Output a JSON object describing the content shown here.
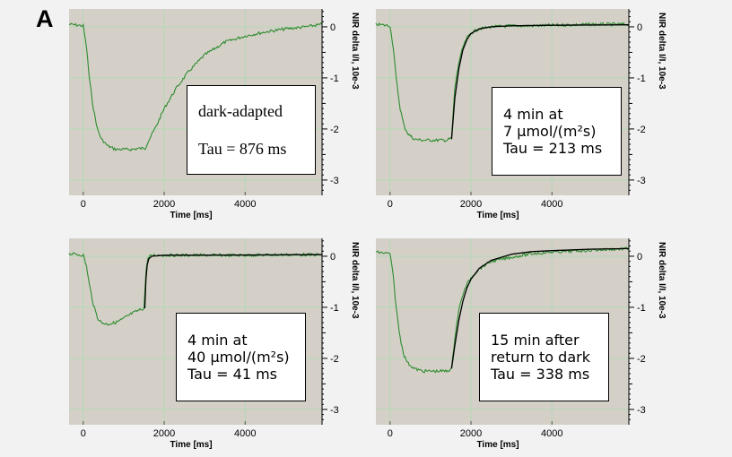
{
  "figure_label": "A",
  "colors": {
    "plot_bg": "#d4d0c8",
    "grid": "#b4d8b4",
    "signal": "#2e8b2e",
    "fit": "#000000"
  },
  "chart_data": [
    {
      "type": "line",
      "title": "",
      "xlabel": "Time [ms]",
      "ylabel": "NIR delta I/I, 10e-3",
      "xlim": [
        -350,
        5900
      ],
      "ylim": [
        -3.3,
        0.35
      ],
      "xticks": [
        0,
        2000,
        4000
      ],
      "yticks": [
        0,
        -1,
        -2,
        -3
      ],
      "grid": true,
      "annotation_lines": [
        "dark-adapted",
        "Tau = 876 ms"
      ],
      "series": [
        {
          "role": "signal",
          "x": [
            -350,
            0,
            80,
            150,
            250,
            350,
            450,
            600,
            800,
            1000,
            1200,
            1400,
            1530,
            1600,
            1800,
            2000,
            2300,
            2600,
            3000,
            3500,
            4000,
            4500,
            5000,
            5500,
            5900
          ],
          "y": [
            0.05,
            0.02,
            -0.4,
            -1.0,
            -1.6,
            -2.0,
            -2.2,
            -2.33,
            -2.4,
            -2.4,
            -2.4,
            -2.38,
            -2.38,
            -2.25,
            -1.95,
            -1.6,
            -1.2,
            -0.88,
            -0.55,
            -0.3,
            -0.18,
            -0.1,
            -0.04,
            0.0,
            0.05
          ]
        }
      ]
    },
    {
      "type": "line",
      "title": "",
      "xlabel": "Time [ms]",
      "ylabel": "NIR delta I/I, 10e-3",
      "xlim": [
        -350,
        5900
      ],
      "ylim": [
        -3.3,
        0.35
      ],
      "xticks": [
        0,
        2000,
        4000
      ],
      "yticks": [
        0,
        -1,
        -2,
        -3
      ],
      "grid": true,
      "annotation_lines": [
        "4 min at",
        "7 µmol/(m²s)",
        "Tau = 213 ms"
      ],
      "series": [
        {
          "role": "signal",
          "x": [
            -350,
            0,
            80,
            150,
            250,
            350,
            450,
            600,
            800,
            1000,
            1200,
            1400,
            1520,
            1600,
            1700,
            1800,
            1900,
            2000,
            2200,
            2500,
            3000,
            3500,
            4000,
            5000,
            5900
          ],
          "y": [
            0.05,
            0.02,
            -0.4,
            -1.0,
            -1.6,
            -1.95,
            -2.1,
            -2.2,
            -2.22,
            -2.22,
            -2.22,
            -2.22,
            -2.18,
            -1.2,
            -0.7,
            -0.4,
            -0.22,
            -0.12,
            -0.04,
            0.0,
            0.02,
            0.02,
            0.03,
            0.05,
            0.05
          ]
        },
        {
          "role": "fit",
          "x": [
            1520,
            1600,
            1700,
            1800,
            1900,
            2000,
            2200,
            2500,
            3000,
            4000,
            5900
          ],
          "y": [
            -2.2,
            -1.4,
            -0.82,
            -0.45,
            -0.25,
            -0.13,
            -0.04,
            0.0,
            0.02,
            0.03,
            0.04
          ]
        }
      ]
    },
    {
      "type": "line",
      "title": "",
      "xlabel": "Time [ms]",
      "ylabel": "NIR delta I/I, 10e-3",
      "xlim": [
        -350,
        5900
      ],
      "ylim": [
        -3.3,
        0.35
      ],
      "xticks": [
        0,
        2000,
        4000
      ],
      "yticks": [
        0,
        -1,
        -2,
        -3
      ],
      "grid": true,
      "annotation_lines": [
        "4 min at",
        "40 µmol/(m²s)",
        "Tau = 41 ms"
      ],
      "series": [
        {
          "role": "signal",
          "x": [
            -350,
            0,
            80,
            150,
            250,
            350,
            450,
            600,
            800,
            1000,
            1200,
            1400,
            1500,
            1530,
            1560,
            1600,
            1650,
            1750,
            2000,
            3000,
            4000,
            5000,
            5900
          ],
          "y": [
            0.05,
            0.02,
            -0.2,
            -0.55,
            -0.95,
            -1.2,
            -1.3,
            -1.33,
            -1.3,
            -1.22,
            -1.12,
            -1.05,
            -1.02,
            -0.6,
            -0.2,
            -0.05,
            0.0,
            0.02,
            0.02,
            0.02,
            0.02,
            0.03,
            0.03
          ]
        },
        {
          "role": "fit",
          "x": [
            1520,
            1550,
            1580,
            1620,
            1700,
            2000,
            3000,
            5900
          ],
          "y": [
            -1.02,
            -0.45,
            -0.17,
            -0.05,
            0.0,
            0.02,
            0.02,
            0.03
          ]
        }
      ]
    },
    {
      "type": "line",
      "title": "",
      "xlabel": "Time [ms]",
      "ylabel": "NIR delta I/I, 10e-3",
      "xlim": [
        -350,
        5900
      ],
      "ylim": [
        -3.3,
        0.35
      ],
      "xticks": [
        0,
        2000,
        4000
      ],
      "yticks": [
        0,
        -1,
        -2,
        -3
      ],
      "grid": true,
      "annotation_lines": [
        "15 min after",
        "return to dark",
        "Tau = 338 ms"
      ],
      "series": [
        {
          "role": "signal",
          "x": [
            -350,
            0,
            80,
            150,
            250,
            350,
            450,
            600,
            800,
            1000,
            1200,
            1400,
            1520,
            1600,
            1700,
            1800,
            1900,
            2000,
            2200,
            2500,
            3000,
            3500,
            4000,
            5000,
            5900
          ],
          "y": [
            0.08,
            0.05,
            -0.4,
            -1.0,
            -1.6,
            -1.95,
            -2.1,
            -2.2,
            -2.25,
            -2.25,
            -2.25,
            -2.25,
            -2.2,
            -1.6,
            -1.05,
            -0.75,
            -0.55,
            -0.42,
            -0.25,
            -0.1,
            -0.02,
            0.05,
            0.08,
            0.12,
            0.15
          ]
        },
        {
          "role": "fit",
          "x": [
            1520,
            1600,
            1700,
            1800,
            1900,
            2000,
            2200,
            2500,
            3000,
            3500,
            4000,
            5000,
            5900
          ],
          "y": [
            -2.2,
            -1.75,
            -1.25,
            -0.88,
            -0.62,
            -0.45,
            -0.24,
            -0.08,
            0.04,
            0.09,
            0.11,
            0.14,
            0.15
          ]
        }
      ]
    }
  ]
}
